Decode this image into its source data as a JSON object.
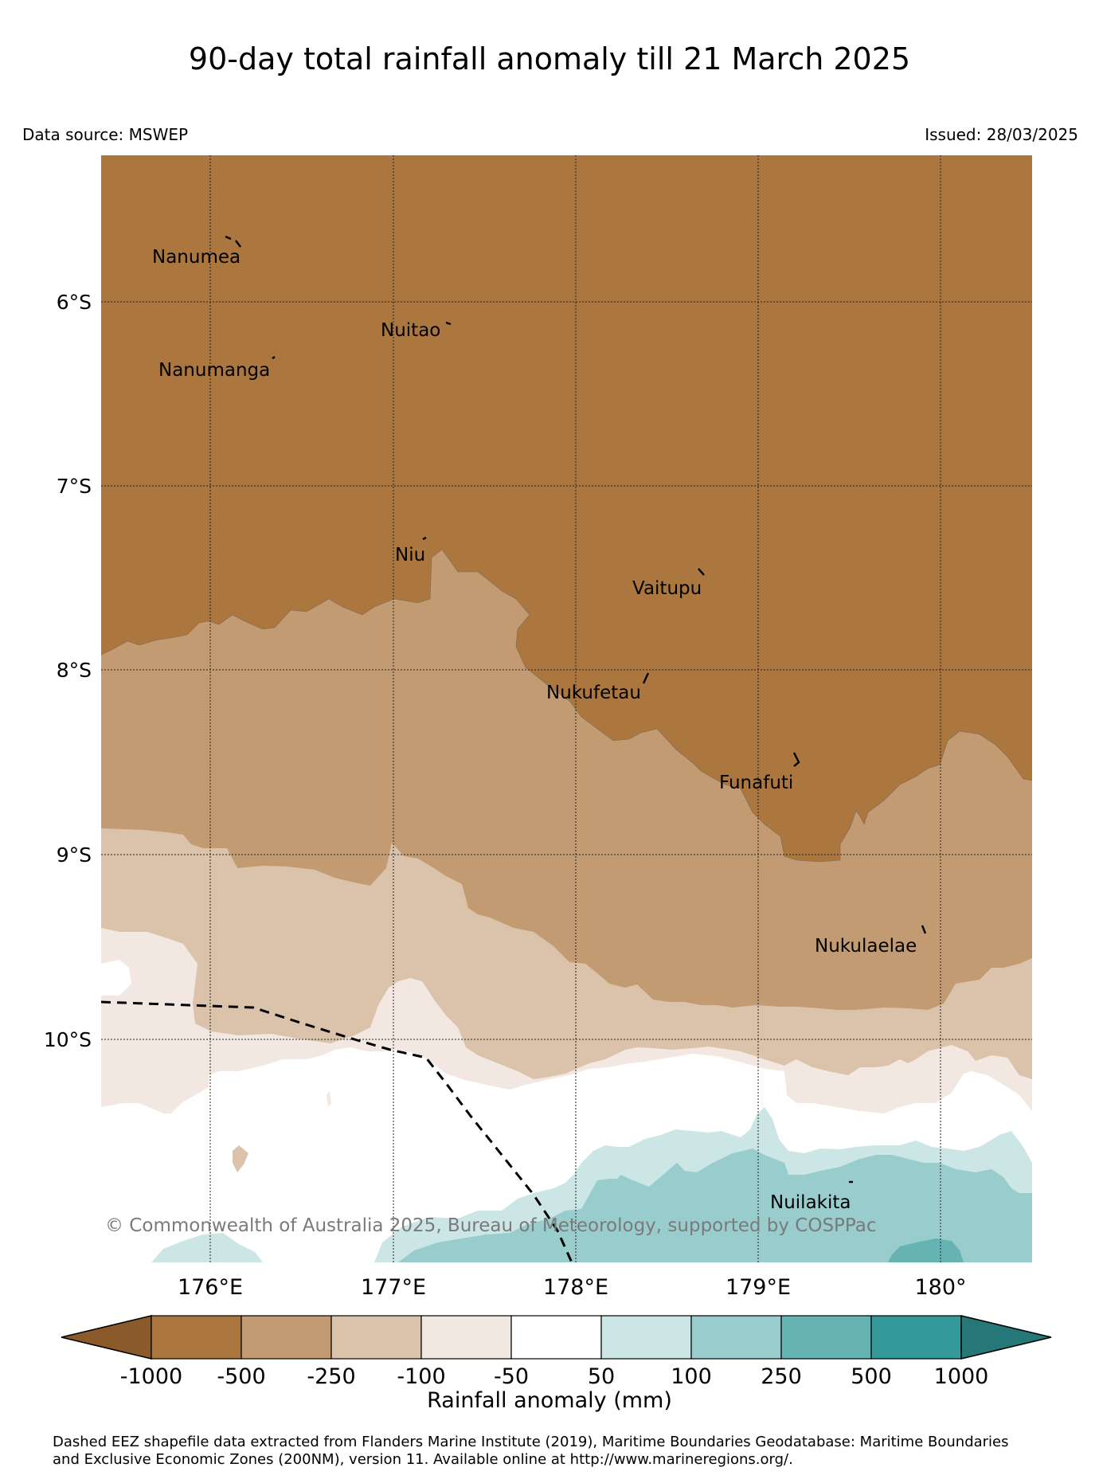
{
  "title": "90-day total rainfall anomaly till 21 March 2025",
  "source": "Data source: MSWEP",
  "issued": "Issued: 28/03/2025",
  "latitude_labels": [
    "6°S",
    "7°S",
    "8°S",
    "9°S",
    "10°S"
  ],
  "longitude_labels": [
    "176°E",
    "177°E",
    "178°E",
    "179°E",
    "180°"
  ],
  "places": [
    "Nanumea",
    "Nuitao",
    "Nanumanga",
    "Niu",
    "Vaitupu",
    "Nukufetau",
    "Funafuti",
    "Nukulaelae",
    "Nuilakita"
  ],
  "copyright": "© Commonwealth of Australia 2025, Bureau of Meteorology, supported by COSPPac",
  "colorbar": {
    "ticks": [
      "-1000",
      "-500",
      "-250",
      "-100",
      "-50",
      "50",
      "100",
      "250",
      "500",
      "1000"
    ],
    "title": "Rainfall anomaly (mm)",
    "colors": [
      "#8b5a2b",
      "#ab773f",
      "#c39b72",
      "#dbc2ab",
      "#f2e8e1",
      "#ffffff",
      "#cce5e5",
      "#99cccc",
      "#66b3b3",
      "#339999",
      "#267777"
    ]
  },
  "footnote": {
    "line1": "Dashed EEZ shapefile data extracted from Flanders Marine Institute (2019), Maritime Boundaries Geodatabase: Maritime Boundaries",
    "line2": "and Exclusive Economic Zones (200NM), version 11. Available online at http://www.marineregions.org/."
  }
}
